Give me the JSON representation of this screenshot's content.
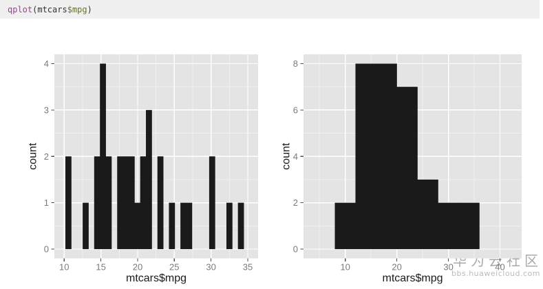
{
  "code": {
    "language": "r",
    "bar_background": "#f0f0f0",
    "tokens": [
      {
        "text": "qplot",
        "color": "#8c4a8c"
      },
      {
        "text": "(",
        "color": "#333333"
      },
      {
        "text": "mtcars",
        "color": "#333333"
      },
      {
        "text": "$mpg",
        "color": "#5e7a1c"
      },
      {
        "text": ")",
        "color": "#333333"
      }
    ]
  },
  "watermark": {
    "brand": "华为云社区",
    "url": "bbs.huaweicloud.com",
    "color": "#aaaaaa"
  },
  "theme": {
    "panel_bg": "#e4e4e4",
    "grid_major": "#ffffff",
    "grid_minor": "#f0f0f0",
    "bar_fill": "#1a1a1a",
    "tick_label_color": "#7a7a7a",
    "axis_title_color": "#1a1a1a",
    "tick_mark_color": "#4d4d4d"
  },
  "chart_data": [
    {
      "type": "bar",
      "subtype": "histogram",
      "title": "",
      "xlabel": "mtcars$mpg",
      "ylabel": "count",
      "bin_start": 10.1833,
      "bin_width": 0.7833,
      "counts": [
        2,
        0,
        0,
        1,
        0,
        2,
        4,
        2,
        0,
        2,
        2,
        2,
        1,
        2,
        3,
        0,
        2,
        0,
        1,
        0,
        1,
        1,
        0,
        0,
        0,
        2,
        0,
        0,
        1,
        0,
        1
      ],
      "x_ticks": [
        10,
        15,
        20,
        25,
        30,
        35
      ],
      "x_minor_ticks": [
        12.5,
        17.5,
        22.5,
        27.5,
        32.5
      ],
      "y_ticks": [
        0,
        1,
        2,
        3,
        4
      ],
      "y_minor_ticks": [
        0.5,
        1.5,
        2.5,
        3.5
      ],
      "xlim": [
        8.66,
        36.41
      ],
      "ylim": [
        -0.2,
        4.2
      ],
      "grid": true,
      "legend": "none"
    },
    {
      "type": "bar",
      "subtype": "histogram",
      "title": "",
      "xlabel": "mtcars$mpg",
      "ylabel": "count",
      "bin_start": 8,
      "bin_width": 4,
      "counts": [
        2,
        8,
        8,
        7,
        3,
        2,
        2
      ],
      "x_ticks": [
        10,
        20,
        30,
        40
      ],
      "x_minor_ticks": [
        5,
        15,
        25,
        35
      ],
      "y_ticks": [
        0,
        2,
        4,
        6,
        8
      ],
      "y_minor_ticks": [
        1,
        3,
        5,
        7
      ],
      "xlim": [
        1.9,
        44.2
      ],
      "ylim": [
        -0.4,
        8.4
      ],
      "grid": true,
      "legend": "none"
    }
  ]
}
